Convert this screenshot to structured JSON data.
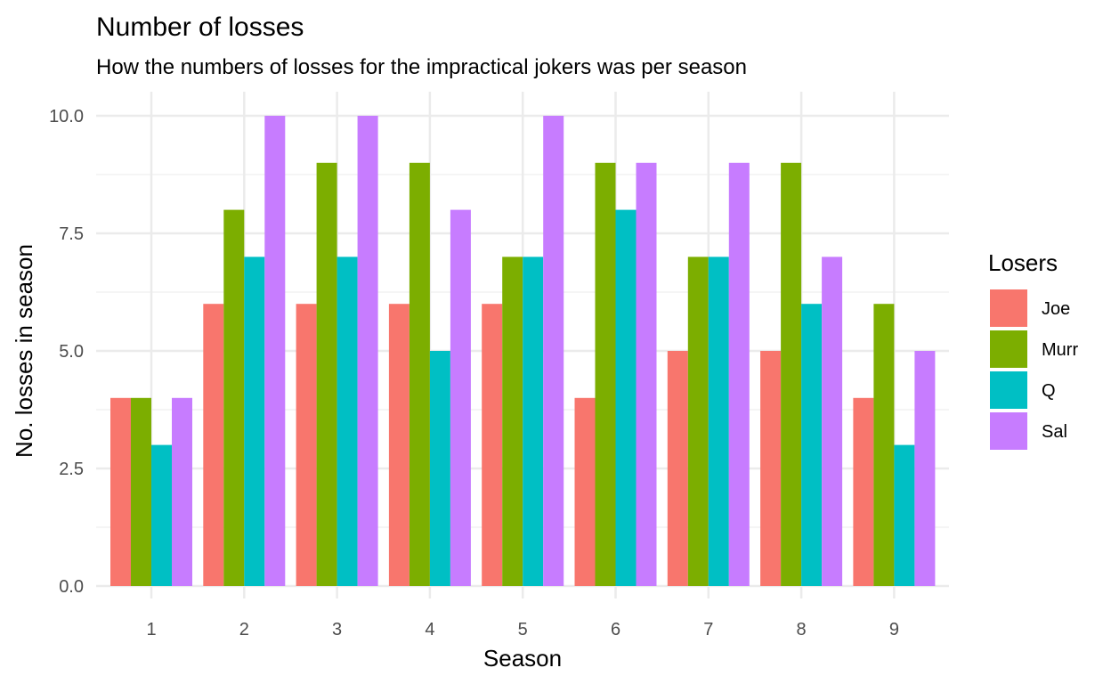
{
  "chart_data": {
    "type": "bar",
    "title": "Number of losses",
    "subtitle": "How the numbers of losses for the impractical jokers was per season",
    "xlabel": "Season",
    "ylabel": "No. losses in season",
    "categories": [
      "1",
      "2",
      "3",
      "4",
      "5",
      "6",
      "7",
      "8",
      "9"
    ],
    "series": [
      {
        "name": "Joe",
        "color": "#F8766D",
        "values": [
          4,
          6,
          6,
          6,
          6,
          4,
          5,
          5,
          4
        ]
      },
      {
        "name": "Murr",
        "color": "#7CAE00",
        "values": [
          4,
          8,
          9,
          9,
          7,
          9,
          7,
          9,
          6
        ]
      },
      {
        "name": "Q",
        "color": "#00BFC4",
        "values": [
          3,
          7,
          7,
          5,
          7,
          8,
          7,
          6,
          3
        ]
      },
      {
        "name": "Sal",
        "color": "#C77CFF",
        "values": [
          4,
          10,
          10,
          8,
          10,
          9,
          9,
          7,
          5
        ]
      }
    ],
    "ylim": [
      0,
      10
    ],
    "yticks": [
      "0.0",
      "2.5",
      "5.0",
      "7.5",
      "10.0"
    ],
    "legend": {
      "title": "Losers",
      "position": "right"
    },
    "grid": true
  }
}
